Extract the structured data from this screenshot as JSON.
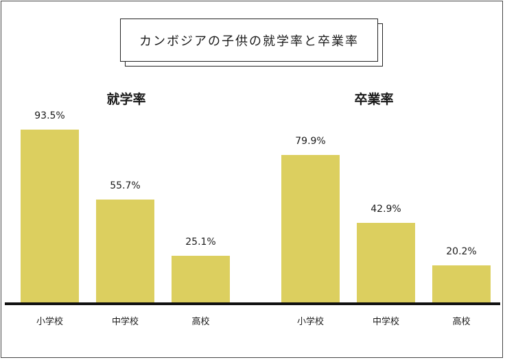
{
  "title": "カンボジアの子供の就学率と卒業率",
  "colors": {
    "bar": "#dccf5f",
    "axis": "#111111"
  },
  "chart_data": [
    {
      "type": "bar",
      "title": "就学率",
      "categories": [
        "小学校",
        "中学校",
        "高校"
      ],
      "values": [
        93.5,
        55.7,
        25.1
      ],
      "value_labels": [
        "93.5%",
        "55.7%",
        "25.1%"
      ],
      "unit": "%",
      "ylim": [
        0,
        100
      ],
      "grid": false
    },
    {
      "type": "bar",
      "title": "卒業率",
      "categories": [
        "小学校",
        "中学校",
        "高校"
      ],
      "values": [
        79.9,
        42.9,
        20.2
      ],
      "value_labels": [
        "79.9%",
        "42.9%",
        "20.2%"
      ],
      "unit": "%",
      "ylim": [
        0,
        100
      ],
      "grid": false
    }
  ]
}
